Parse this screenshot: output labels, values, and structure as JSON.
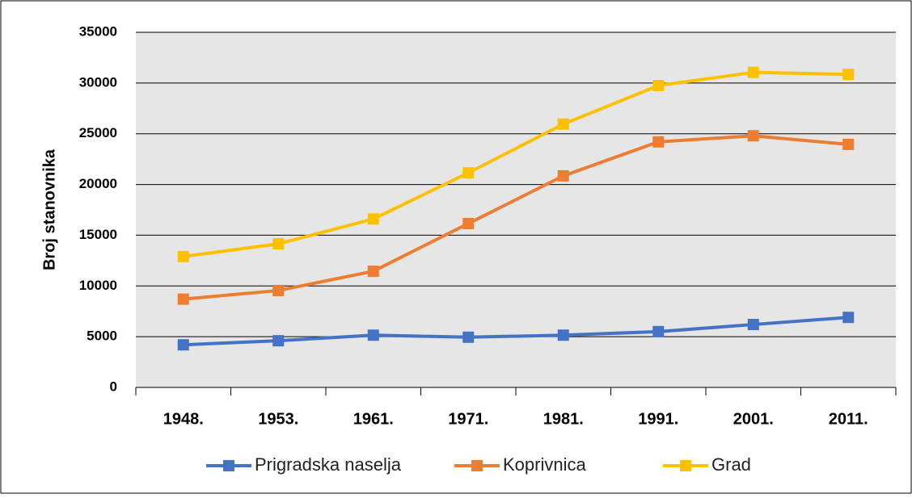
{
  "chart_data": {
    "type": "line",
    "y_label": "Broj stanovnika",
    "categories": [
      "1948.",
      "1953.",
      "1961.",
      "1971.",
      "1981.",
      "1991.",
      "2001.",
      "2011."
    ],
    "series": [
      {
        "name": "Prigradska naselja",
        "color": "#4472c4",
        "values": [
          4200,
          4600,
          5150,
          4950,
          5150,
          5500,
          6200,
          6900
        ]
      },
      {
        "name": "Koprivnica",
        "color": "#ed7d31",
        "values": [
          8700,
          9550,
          11450,
          16150,
          20850,
          24200,
          24800,
          23950
        ]
      },
      {
        "name": "Grad",
        "color": "#ffc000",
        "values": [
          12900,
          14150,
          16600,
          21150,
          25950,
          29750,
          31050,
          30850
        ]
      }
    ],
    "ylim": [
      0,
      35000
    ],
    "yticks": [
      0,
      5000,
      10000,
      15000,
      20000,
      25000,
      30000,
      35000
    ],
    "grid": true
  }
}
